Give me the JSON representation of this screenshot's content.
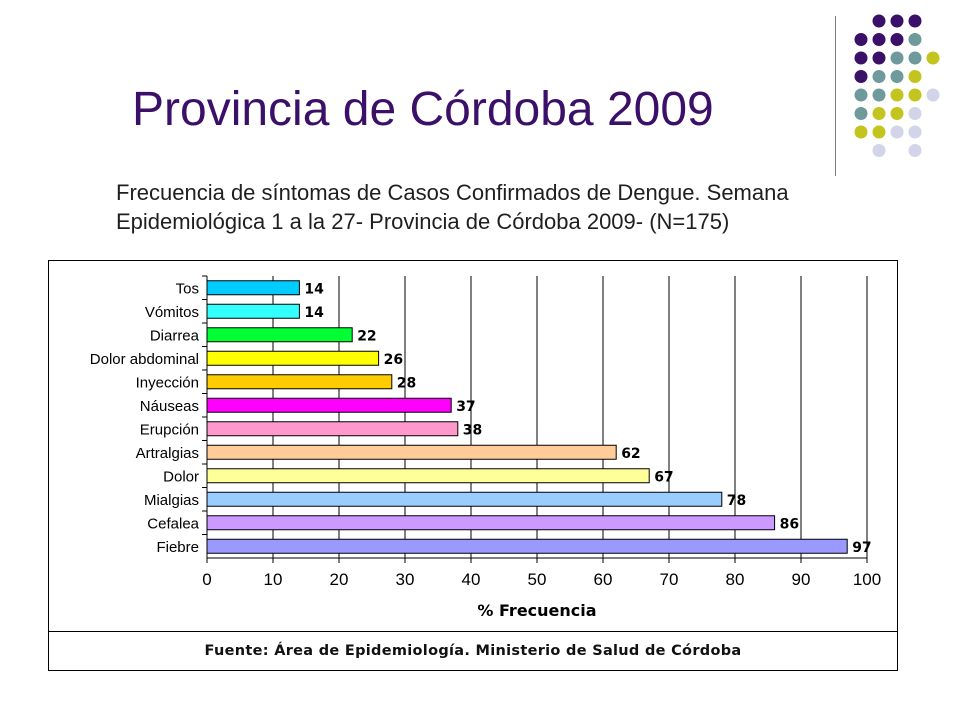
{
  "slide": {
    "title": "Provincia de Córdoba 2009",
    "subtitle_line1": "Frecuencia de síntomas de Casos Confirmados de Dengue. Semana",
    "subtitle_line2": "Epidemiológica 1 a la 27- Provincia de Córdoba 2009- (N=175)",
    "source": "Fuente: Área de Epidemiología. Ministerio de Salud de Córdoba"
  },
  "decor": {
    "dot_colors": {
      "purple": "#3b1068",
      "teal": "#6f9a9c",
      "olive": "#c3c41d",
      "lavender": "#d3d3ea"
    }
  },
  "chart_data": {
    "type": "bar",
    "orientation": "horizontal",
    "title": "",
    "xlabel": "% Frecuencia",
    "ylabel": "",
    "xlim": [
      0,
      100
    ],
    "xticks": [
      0,
      10,
      20,
      30,
      40,
      50,
      60,
      70,
      80,
      90,
      100
    ],
    "grid": "vertical",
    "legend": "none",
    "categories": [
      "Tos",
      "Vómitos",
      "Diarrea",
      "Dolor abdominal",
      "Inyección",
      "Náuseas",
      "Erupción",
      "Artralgias",
      "Dolor",
      "Mialgias",
      "Cefalea",
      "Fiebre"
    ],
    "values": [
      14,
      14,
      22,
      26,
      28,
      37,
      38,
      62,
      67,
      78,
      86,
      97
    ],
    "colors": [
      "#00ccff",
      "#33ffff",
      "#00ff33",
      "#ffff00",
      "#ffcc00",
      "#ff00ff",
      "#ff99cc",
      "#ffcc99",
      "#ffff99",
      "#99ccff",
      "#cc99ff",
      "#9999ff"
    ]
  }
}
